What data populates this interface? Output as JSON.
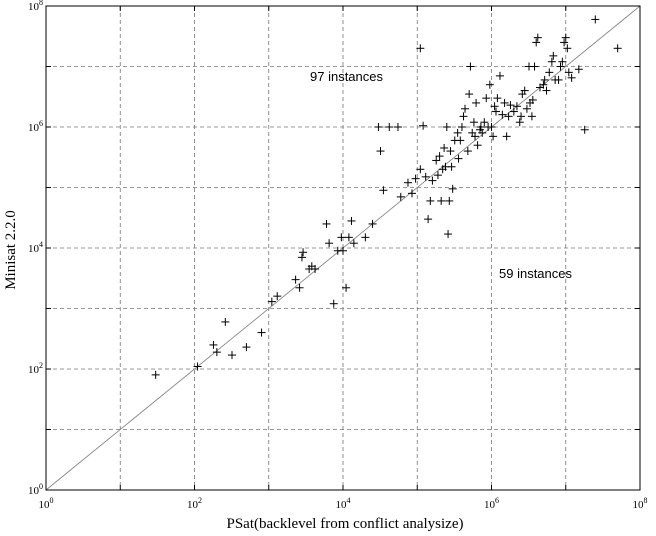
{
  "chart_data": {
    "type": "scatter",
    "xscale": "log",
    "yscale": "log",
    "xlim": [
      1,
      100000000
    ],
    "ylim": [
      1,
      100000000
    ],
    "grid": true,
    "diagonal": "y=x",
    "xlabel": "PSat(backlevel from conflict analysize)",
    "ylabel": "Minisat 2.2.0",
    "x_ticks": [
      {
        "base": "10",
        "exp": "0"
      },
      {
        "base": "10",
        "exp": "2"
      },
      {
        "base": "10",
        "exp": "4"
      },
      {
        "base": "10",
        "exp": "6"
      },
      {
        "base": "10",
        "exp": "8"
      }
    ],
    "y_ticks": [
      {
        "base": "10",
        "exp": "0"
      },
      {
        "base": "10",
        "exp": "2"
      },
      {
        "base": "10",
        "exp": "4"
      },
      {
        "base": "10",
        "exp": "6"
      },
      {
        "base": "10",
        "exp": "8"
      }
    ],
    "annotations": [
      "97 instances",
      "59 instances"
    ],
    "points": [
      [
        30,
        80
      ],
      [
        110,
        110
      ],
      [
        180,
        250
      ],
      [
        200,
        190
      ],
      [
        260,
        600
      ],
      [
        320,
        170
      ],
      [
        500,
        230
      ],
      [
        800,
        400
      ],
      [
        1100,
        1300
      ],
      [
        1300,
        1600
      ],
      [
        2300,
        3000
      ],
      [
        2600,
        2200
      ],
      [
        2800,
        7000
      ],
      [
        2900,
        8500
      ],
      [
        3500,
        4500
      ],
      [
        3800,
        5000
      ],
      [
        4200,
        4500
      ],
      [
        6000,
        25000
      ],
      [
        6500,
        12000
      ],
      [
        7500,
        1200
      ],
      [
        8500,
        9000
      ],
      [
        9500,
        15000
      ],
      [
        10000,
        9000
      ],
      [
        11000,
        2200
      ],
      [
        12000,
        15000
      ],
      [
        13000,
        28000
      ],
      [
        14000,
        12000
      ],
      [
        20000,
        15000
      ],
      [
        25000,
        25000
      ],
      [
        30000,
        1000000
      ],
      [
        32000,
        400000
      ],
      [
        35000,
        90000
      ],
      [
        42000,
        1000000
      ],
      [
        55000,
        1000000
      ],
      [
        60000,
        70000
      ],
      [
        75000,
        120000
      ],
      [
        85000,
        80000
      ],
      [
        95000,
        140000
      ],
      [
        110000,
        200000
      ],
      [
        110000,
        20000000
      ],
      [
        120000,
        1050000
      ],
      [
        130000,
        150000
      ],
      [
        140000,
        30000
      ],
      [
        150000,
        60000
      ],
      [
        160000,
        130000
      ],
      [
        180000,
        280000
      ],
      [
        190000,
        160000
      ],
      [
        200000,
        330000
      ],
      [
        210000,
        60000
      ],
      [
        220000,
        200000
      ],
      [
        230000,
        450000
      ],
      [
        240000,
        220000
      ],
      [
        250000,
        1000000
      ],
      [
        260000,
        17000
      ],
      [
        270000,
        60000
      ],
      [
        280000,
        400000
      ],
      [
        290000,
        220000
      ],
      [
        300000,
        95000
      ],
      [
        320000,
        600000
      ],
      [
        350000,
        800000
      ],
      [
        360000,
        300000
      ],
      [
        380000,
        600000
      ],
      [
        400000,
        1000000
      ],
      [
        420000,
        1500000
      ],
      [
        440000,
        2000000
      ],
      [
        480000,
        400000
      ],
      [
        500000,
        3500000
      ],
      [
        520000,
        10000000
      ],
      [
        550000,
        800000
      ],
      [
        580000,
        1200000
      ],
      [
        600000,
        700000
      ],
      [
        620000,
        2500000
      ],
      [
        650000,
        500000
      ],
      [
        700000,
        900000
      ],
      [
        720000,
        1000000
      ],
      [
        750000,
        800000
      ],
      [
        800000,
        1200000
      ],
      [
        850000,
        3000000
      ],
      [
        900000,
        1000000
      ],
      [
        950000,
        5000000
      ],
      [
        1000000,
        1000000
      ],
      [
        1050000,
        700000
      ],
      [
        1100000,
        2200000
      ],
      [
        1150000,
        1800000
      ],
      [
        1200000,
        3000000
      ],
      [
        1300000,
        7000000
      ],
      [
        1400000,
        1600000
      ],
      [
        1500000,
        2500000
      ],
      [
        1600000,
        700000
      ],
      [
        1700000,
        1500000
      ],
      [
        1800000,
        2300000
      ],
      [
        2000000,
        1800000
      ],
      [
        2200000,
        2200000
      ],
      [
        2400000,
        1200000
      ],
      [
        2500000,
        1500000
      ],
      [
        2600000,
        3500000
      ],
      [
        2800000,
        4000000
      ],
      [
        3000000,
        2000000
      ],
      [
        3200000,
        10000000
      ],
      [
        3300000,
        2500000
      ],
      [
        3500000,
        1500000
      ],
      [
        3600000,
        2800000
      ],
      [
        3800000,
        10000000
      ],
      [
        4000000,
        25000000
      ],
      [
        4200000,
        30000000
      ],
      [
        4500000,
        4500000
      ],
      [
        5000000,
        5000000
      ],
      [
        5200000,
        6000000
      ],
      [
        5500000,
        4000000
      ],
      [
        6000000,
        8000000
      ],
      [
        6500000,
        12000000
      ],
      [
        6800000,
        15000000
      ],
      [
        7200000,
        6000000
      ],
      [
        8000000,
        6000000
      ],
      [
        8500000,
        10000000
      ],
      [
        9000000,
        12000000
      ],
      [
        9500000,
        25000000
      ],
      [
        10000000,
        30000000
      ],
      [
        10500000,
        20000000
      ],
      [
        11000000,
        8000000
      ],
      [
        12000000,
        6500000
      ],
      [
        15000000,
        9000000
      ],
      [
        18000000,
        900000
      ],
      [
        25000000,
        60000000
      ],
      [
        50000000,
        20000000
      ]
    ]
  }
}
